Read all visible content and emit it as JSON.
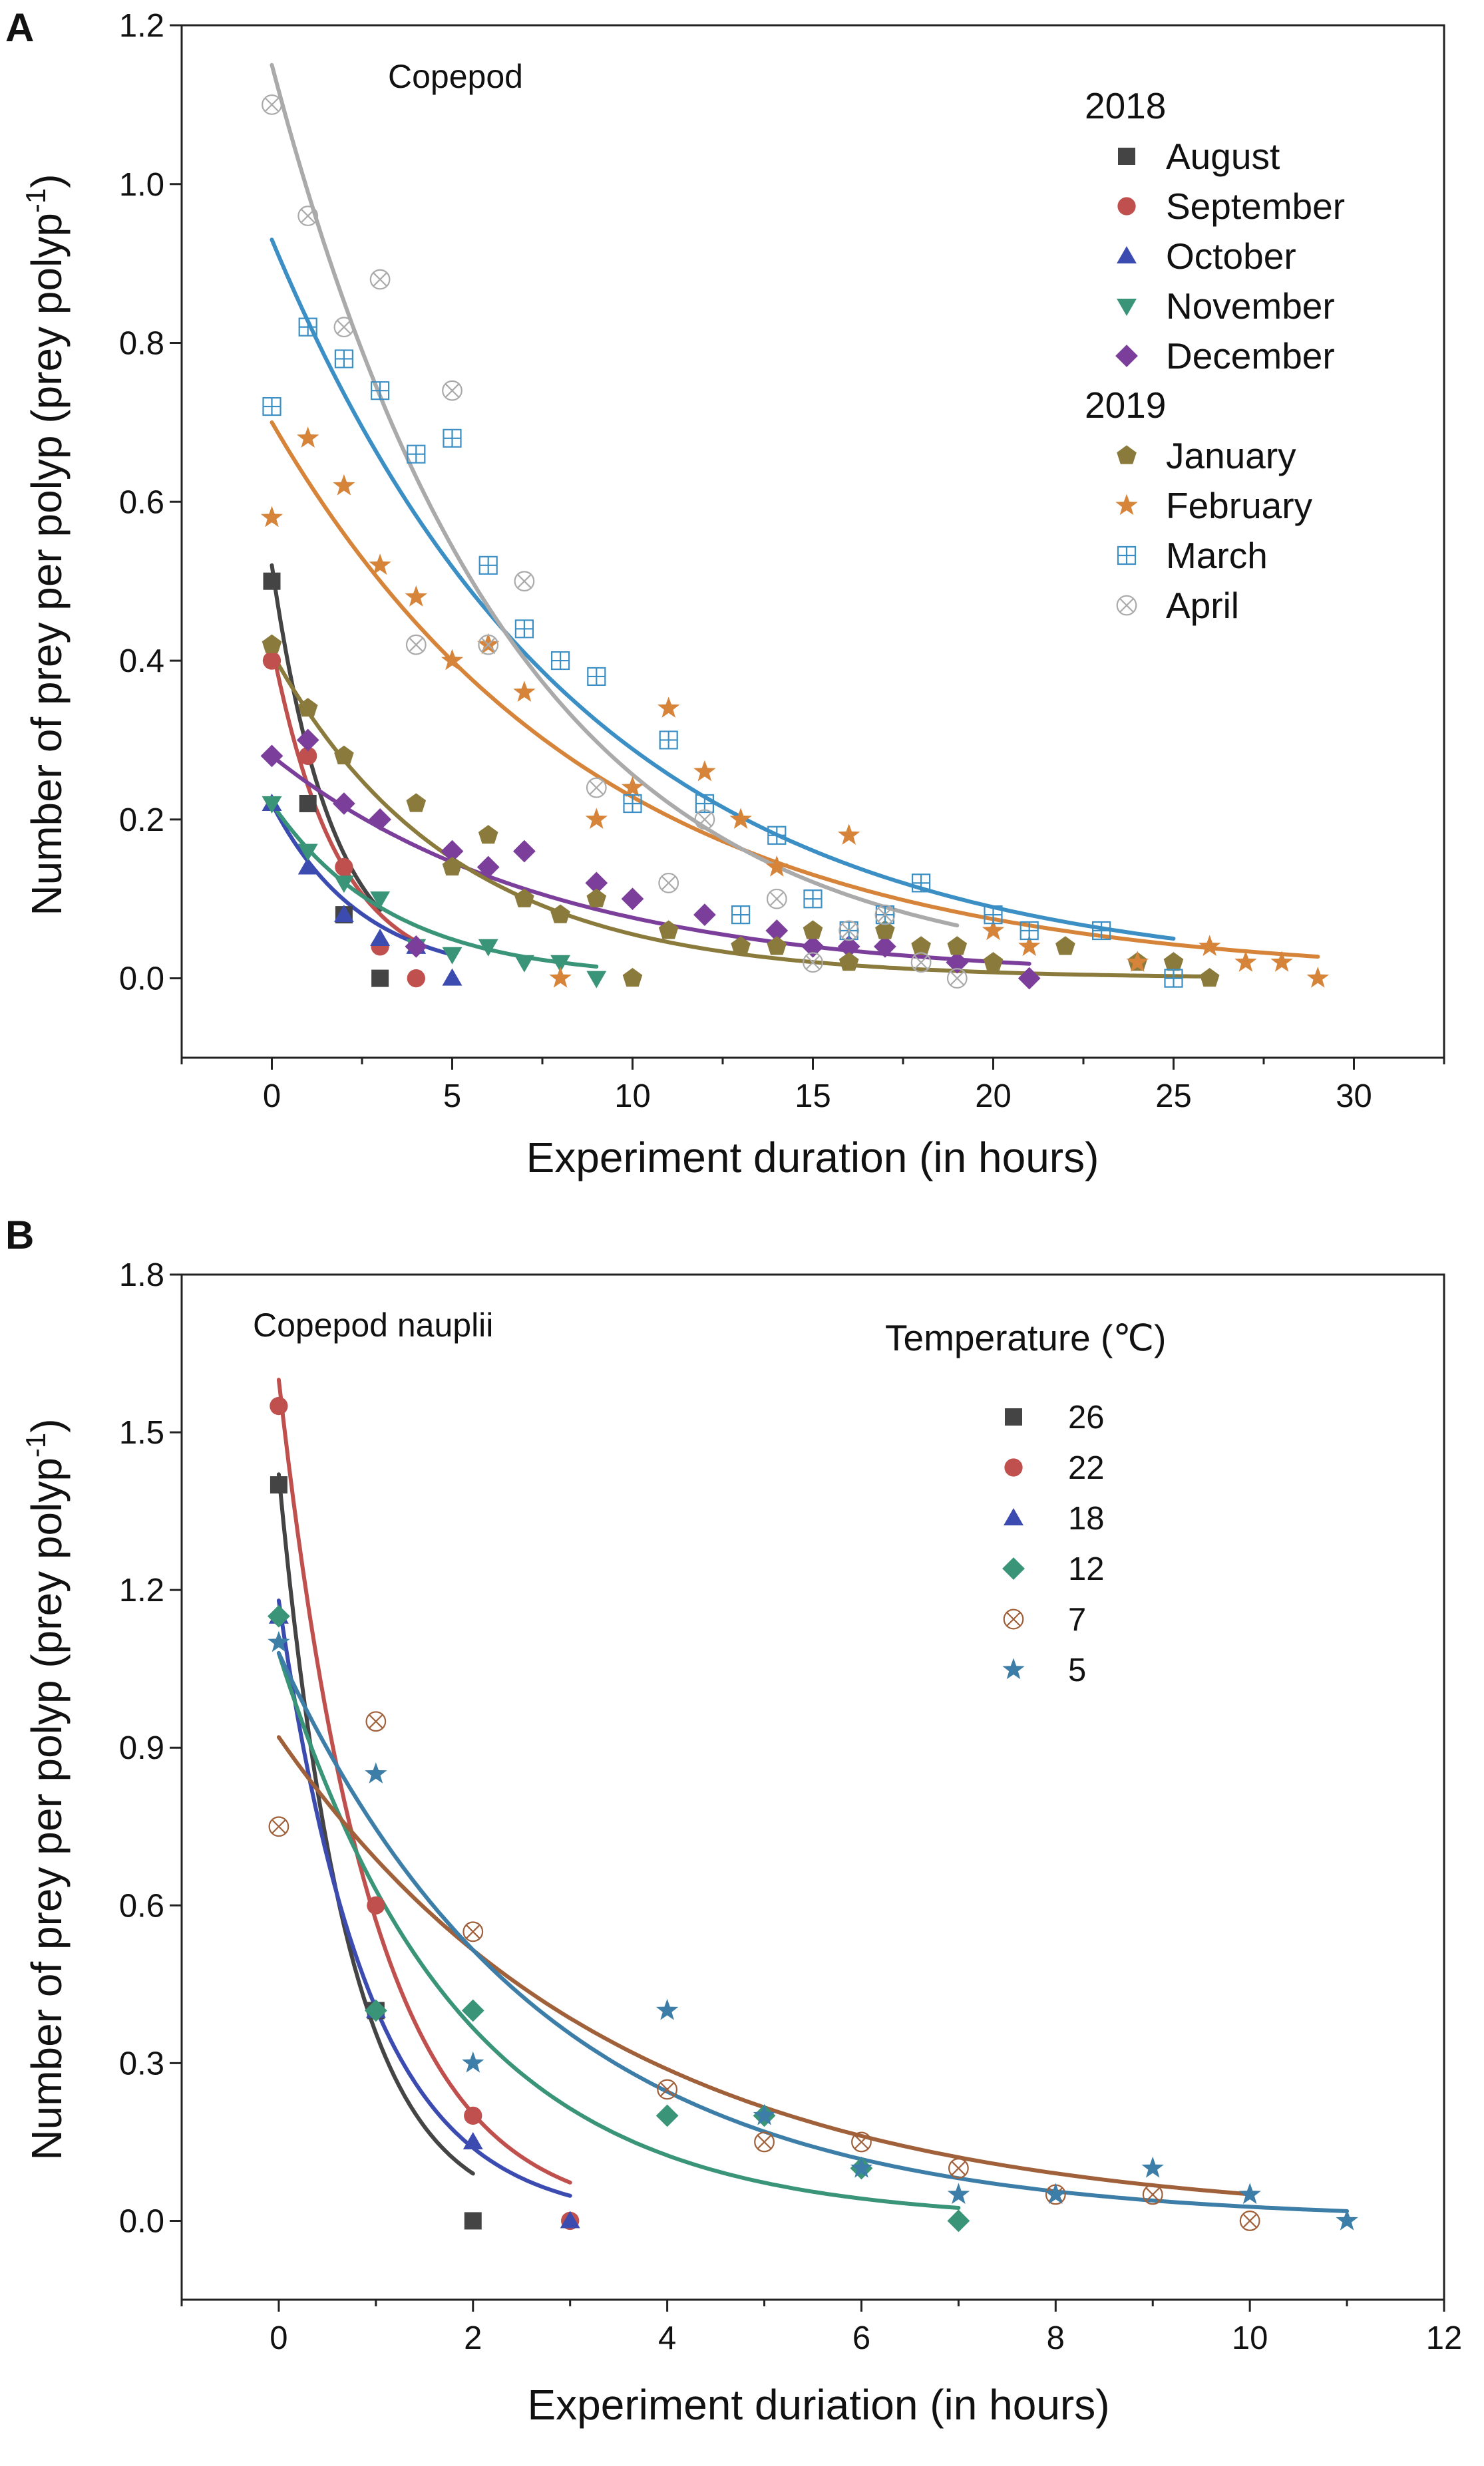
{
  "figure": {
    "panels": [
      "A",
      "B"
    ]
  },
  "chart_data": [
    {
      "panel": "A",
      "type": "scatter",
      "title": "Copepod",
      "xlabel": "Experiment duration (in hours)",
      "ylabel": "Number of prey per polyp (prey polyp",
      "ylabel_sup": "-1",
      "ylabel_close": ")",
      "xlim": [
        -2.5,
        32.5
      ],
      "ylim": [
        -0.1,
        1.2
      ],
      "xticks": [
        0,
        5,
        10,
        15,
        20,
        25,
        30
      ],
      "xtick_labels": [
        "0",
        "5",
        "10",
        "15",
        "20",
        "25",
        "30"
      ],
      "yticks": [
        0.0,
        0.2,
        0.4,
        0.6,
        0.8,
        1.0,
        1.2
      ],
      "ytick_labels": [
        "0.0",
        "0.2",
        "0.4",
        "0.6",
        "0.8",
        "1.0",
        "1.2"
      ],
      "legend": {
        "placement": "top-right",
        "groups": [
          {
            "heading": "2018",
            "series": [
              "August",
              "September",
              "October",
              "November",
              "December"
            ]
          },
          {
            "heading": "2019",
            "series": [
              "January",
              "February",
              "March",
              "April"
            ]
          }
        ]
      },
      "series": [
        {
          "name": "August",
          "marker": "square",
          "color": "#444444",
          "x": [
            0,
            1,
            2,
            3
          ],
          "y": [
            0.5,
            0.22,
            0.08,
            0.0
          ],
          "fit": {
            "a": 0.52,
            "b": 0.6,
            "xmax": 3
          }
        },
        {
          "name": "September",
          "marker": "circle",
          "color": "#c0504d",
          "x": [
            0,
            1,
            2,
            3,
            4
          ],
          "y": [
            0.4,
            0.28,
            0.14,
            0.04,
            0.0
          ],
          "fit": {
            "a": 0.42,
            "b": 0.55,
            "xmax": 4
          }
        },
        {
          "name": "October",
          "marker": "triangle",
          "color": "#3b4bb0",
          "x": [
            0,
            1,
            2,
            3,
            4,
            5
          ],
          "y": [
            0.22,
            0.14,
            0.08,
            0.05,
            0.04,
            0.0
          ],
          "fit": {
            "a": 0.22,
            "b": 0.4,
            "xmax": 5
          }
        },
        {
          "name": "November",
          "marker": "triangle-down",
          "color": "#3a9478",
          "x": [
            0,
            1,
            2,
            3,
            4,
            5,
            6,
            7,
            8,
            9
          ],
          "y": [
            0.22,
            0.16,
            0.12,
            0.1,
            0.04,
            0.03,
            0.04,
            0.02,
            0.02,
            0.0
          ],
          "fit": {
            "a": 0.22,
            "b": 0.3,
            "xmax": 9
          }
        },
        {
          "name": "December",
          "marker": "diamond",
          "color": "#7b3f9b",
          "x": [
            0,
            1,
            2,
            3,
            4,
            5,
            6,
            7,
            9,
            10,
            12,
            14,
            15,
            16,
            17,
            19,
            21
          ],
          "y": [
            0.28,
            0.3,
            0.22,
            0.2,
            0.04,
            0.16,
            0.14,
            0.16,
            0.12,
            0.1,
            0.08,
            0.06,
            0.04,
            0.04,
            0.04,
            0.02,
            0.0
          ],
          "fit": {
            "a": 0.28,
            "b": 0.13,
            "xmax": 21
          }
        },
        {
          "name": "January",
          "marker": "pentagon",
          "color": "#8a7a3c",
          "x": [
            0,
            1,
            2,
            4,
            5,
            6,
            7,
            8,
            9,
            10,
            11,
            13,
            14,
            15,
            16,
            17,
            18,
            19,
            20,
            22,
            24,
            25,
            26
          ],
          "y": [
            0.42,
            0.34,
            0.28,
            0.22,
            0.14,
            0.18,
            0.1,
            0.08,
            0.1,
            0.0,
            0.06,
            0.04,
            0.04,
            0.06,
            0.02,
            0.06,
            0.04,
            0.04,
            0.02,
            0.04,
            0.02,
            0.02,
            0.0
          ],
          "fit": {
            "a": 0.41,
            "b": 0.2,
            "xmax": 26
          }
        },
        {
          "name": "February",
          "marker": "star",
          "color": "#d6843a",
          "x": [
            0,
            1,
            2,
            3,
            4,
            5,
            6,
            7,
            8,
            9,
            10,
            11,
            12,
            13,
            14,
            16,
            20,
            21,
            24,
            26,
            27,
            28,
            29
          ],
          "y": [
            0.58,
            0.68,
            0.62,
            0.52,
            0.48,
            0.4,
            0.42,
            0.36,
            0.0,
            0.2,
            0.24,
            0.34,
            0.26,
            0.2,
            0.14,
            0.18,
            0.06,
            0.04,
            0.02,
            0.04,
            0.02,
            0.02,
            0.0
          ],
          "fit": {
            "a": 0.7,
            "b": 0.112,
            "xmax": 29
          }
        },
        {
          "name": "March",
          "marker": "square-grid",
          "color": "#3b8fc4",
          "x": [
            0,
            1,
            2,
            3,
            4,
            5,
            6,
            7,
            8,
            9,
            10,
            11,
            12,
            13,
            14,
            15,
            16,
            17,
            18,
            20,
            21,
            23,
            25
          ],
          "y": [
            0.72,
            0.82,
            0.78,
            0.74,
            0.66,
            0.68,
            0.52,
            0.44,
            0.4,
            0.38,
            0.22,
            0.3,
            0.22,
            0.08,
            0.18,
            0.1,
            0.06,
            0.08,
            0.12,
            0.08,
            0.06,
            0.06,
            0.0
          ],
          "fit": {
            "a": 0.93,
            "b": 0.117,
            "xmax": 25
          }
        },
        {
          "name": "April",
          "marker": "circle-x",
          "color": "#aaaaaa",
          "x": [
            0,
            1,
            2,
            3,
            4,
            5,
            6,
            7,
            9,
            11,
            12,
            14,
            15,
            16,
            17,
            18,
            19
          ],
          "y": [
            1.1,
            0.96,
            0.82,
            0.88,
            0.42,
            0.74,
            0.42,
            0.5,
            0.24,
            0.12,
            0.2,
            0.1,
            0.02,
            0.06,
            0.08,
            0.02,
            0.0
          ],
          "fit": {
            "a": 1.15,
            "b": 0.15,
            "xmax": 19
          }
        }
      ]
    },
    {
      "panel": "B",
      "type": "scatter",
      "title": "Copepod nauplii",
      "xlabel": "Experiment duriation (in hours)",
      "ylabel": "Number of prey per polyp (prey polyp",
      "ylabel_sup": "-1",
      "ylabel_close": ")",
      "xlim": [
        -1,
        12
      ],
      "ylim": [
        -0.15,
        1.8
      ],
      "xticks": [
        0,
        2,
        4,
        6,
        8,
        10,
        12
      ],
      "xtick_labels": [
        "0",
        "2",
        "4",
        "6",
        "8",
        "10",
        "12"
      ],
      "yticks": [
        0.0,
        0.3,
        0.6,
        0.9,
        1.2,
        1.5,
        1.8
      ],
      "ytick_labels": [
        "0.0",
        "0.3",
        "0.6",
        "0.9",
        "1.2",
        "1.5",
        "1.8"
      ],
      "legend": {
        "placement": "top-right",
        "groups": [
          {
            "heading": "Temperature (℃)",
            "series": [
              "26",
              "22",
              "18",
              "12",
              "7",
              "5"
            ]
          }
        ]
      },
      "series": [
        {
          "name": "26",
          "marker": "square",
          "color": "#444444",
          "x": [
            0,
            1,
            2
          ],
          "y": [
            1.4,
            0.4,
            0.0
          ],
          "fit": {
            "a": 1.42,
            "b": 1.38,
            "xmax": 2
          }
        },
        {
          "name": "22",
          "marker": "circle",
          "color": "#c0504d",
          "x": [
            0,
            1,
            2,
            3
          ],
          "y": [
            1.55,
            0.6,
            0.2,
            0.0
          ],
          "fit": {
            "a": 1.6,
            "b": 1.03,
            "xmax": 3
          }
        },
        {
          "name": "18",
          "marker": "triangle",
          "color": "#3b4bb0",
          "x": [
            0,
            1,
            2,
            3
          ],
          "y": [
            1.15,
            0.4,
            0.15,
            0.0
          ],
          "fit": {
            "a": 1.18,
            "b": 1.07,
            "xmax": 3
          }
        },
        {
          "name": "12",
          "marker": "diamond",
          "color": "#3a9478",
          "x": [
            0,
            1,
            2,
            4,
            5,
            6,
            7
          ],
          "y": [
            1.15,
            0.4,
            0.4,
            0.2,
            0.2,
            0.1,
            0.0
          ],
          "fit": {
            "a": 1.08,
            "b": 0.54,
            "xmax": 7
          }
        },
        {
          "name": "7",
          "marker": "circle-x",
          "color": "#a0603a",
          "x": [
            0,
            1,
            2,
            4,
            5,
            6,
            7,
            8,
            9,
            10
          ],
          "y": [
            0.75,
            0.95,
            0.55,
            0.25,
            0.15,
            0.15,
            0.1,
            0.05,
            0.05,
            0.0
          ],
          "fit": {
            "a": 0.92,
            "b": 0.29,
            "xmax": 10
          }
        },
        {
          "name": "5",
          "marker": "star",
          "color": "#3c7ea8",
          "x": [
            0,
            1,
            2,
            4,
            5,
            6,
            7,
            8,
            9,
            10,
            11
          ],
          "y": [
            1.1,
            0.85,
            0.3,
            0.4,
            0.2,
            0.1,
            0.05,
            0.05,
            0.1,
            0.05,
            0.0
          ],
          "fit": {
            "a": 1.08,
            "b": 0.37,
            "xmax": 11
          }
        }
      ]
    }
  ]
}
